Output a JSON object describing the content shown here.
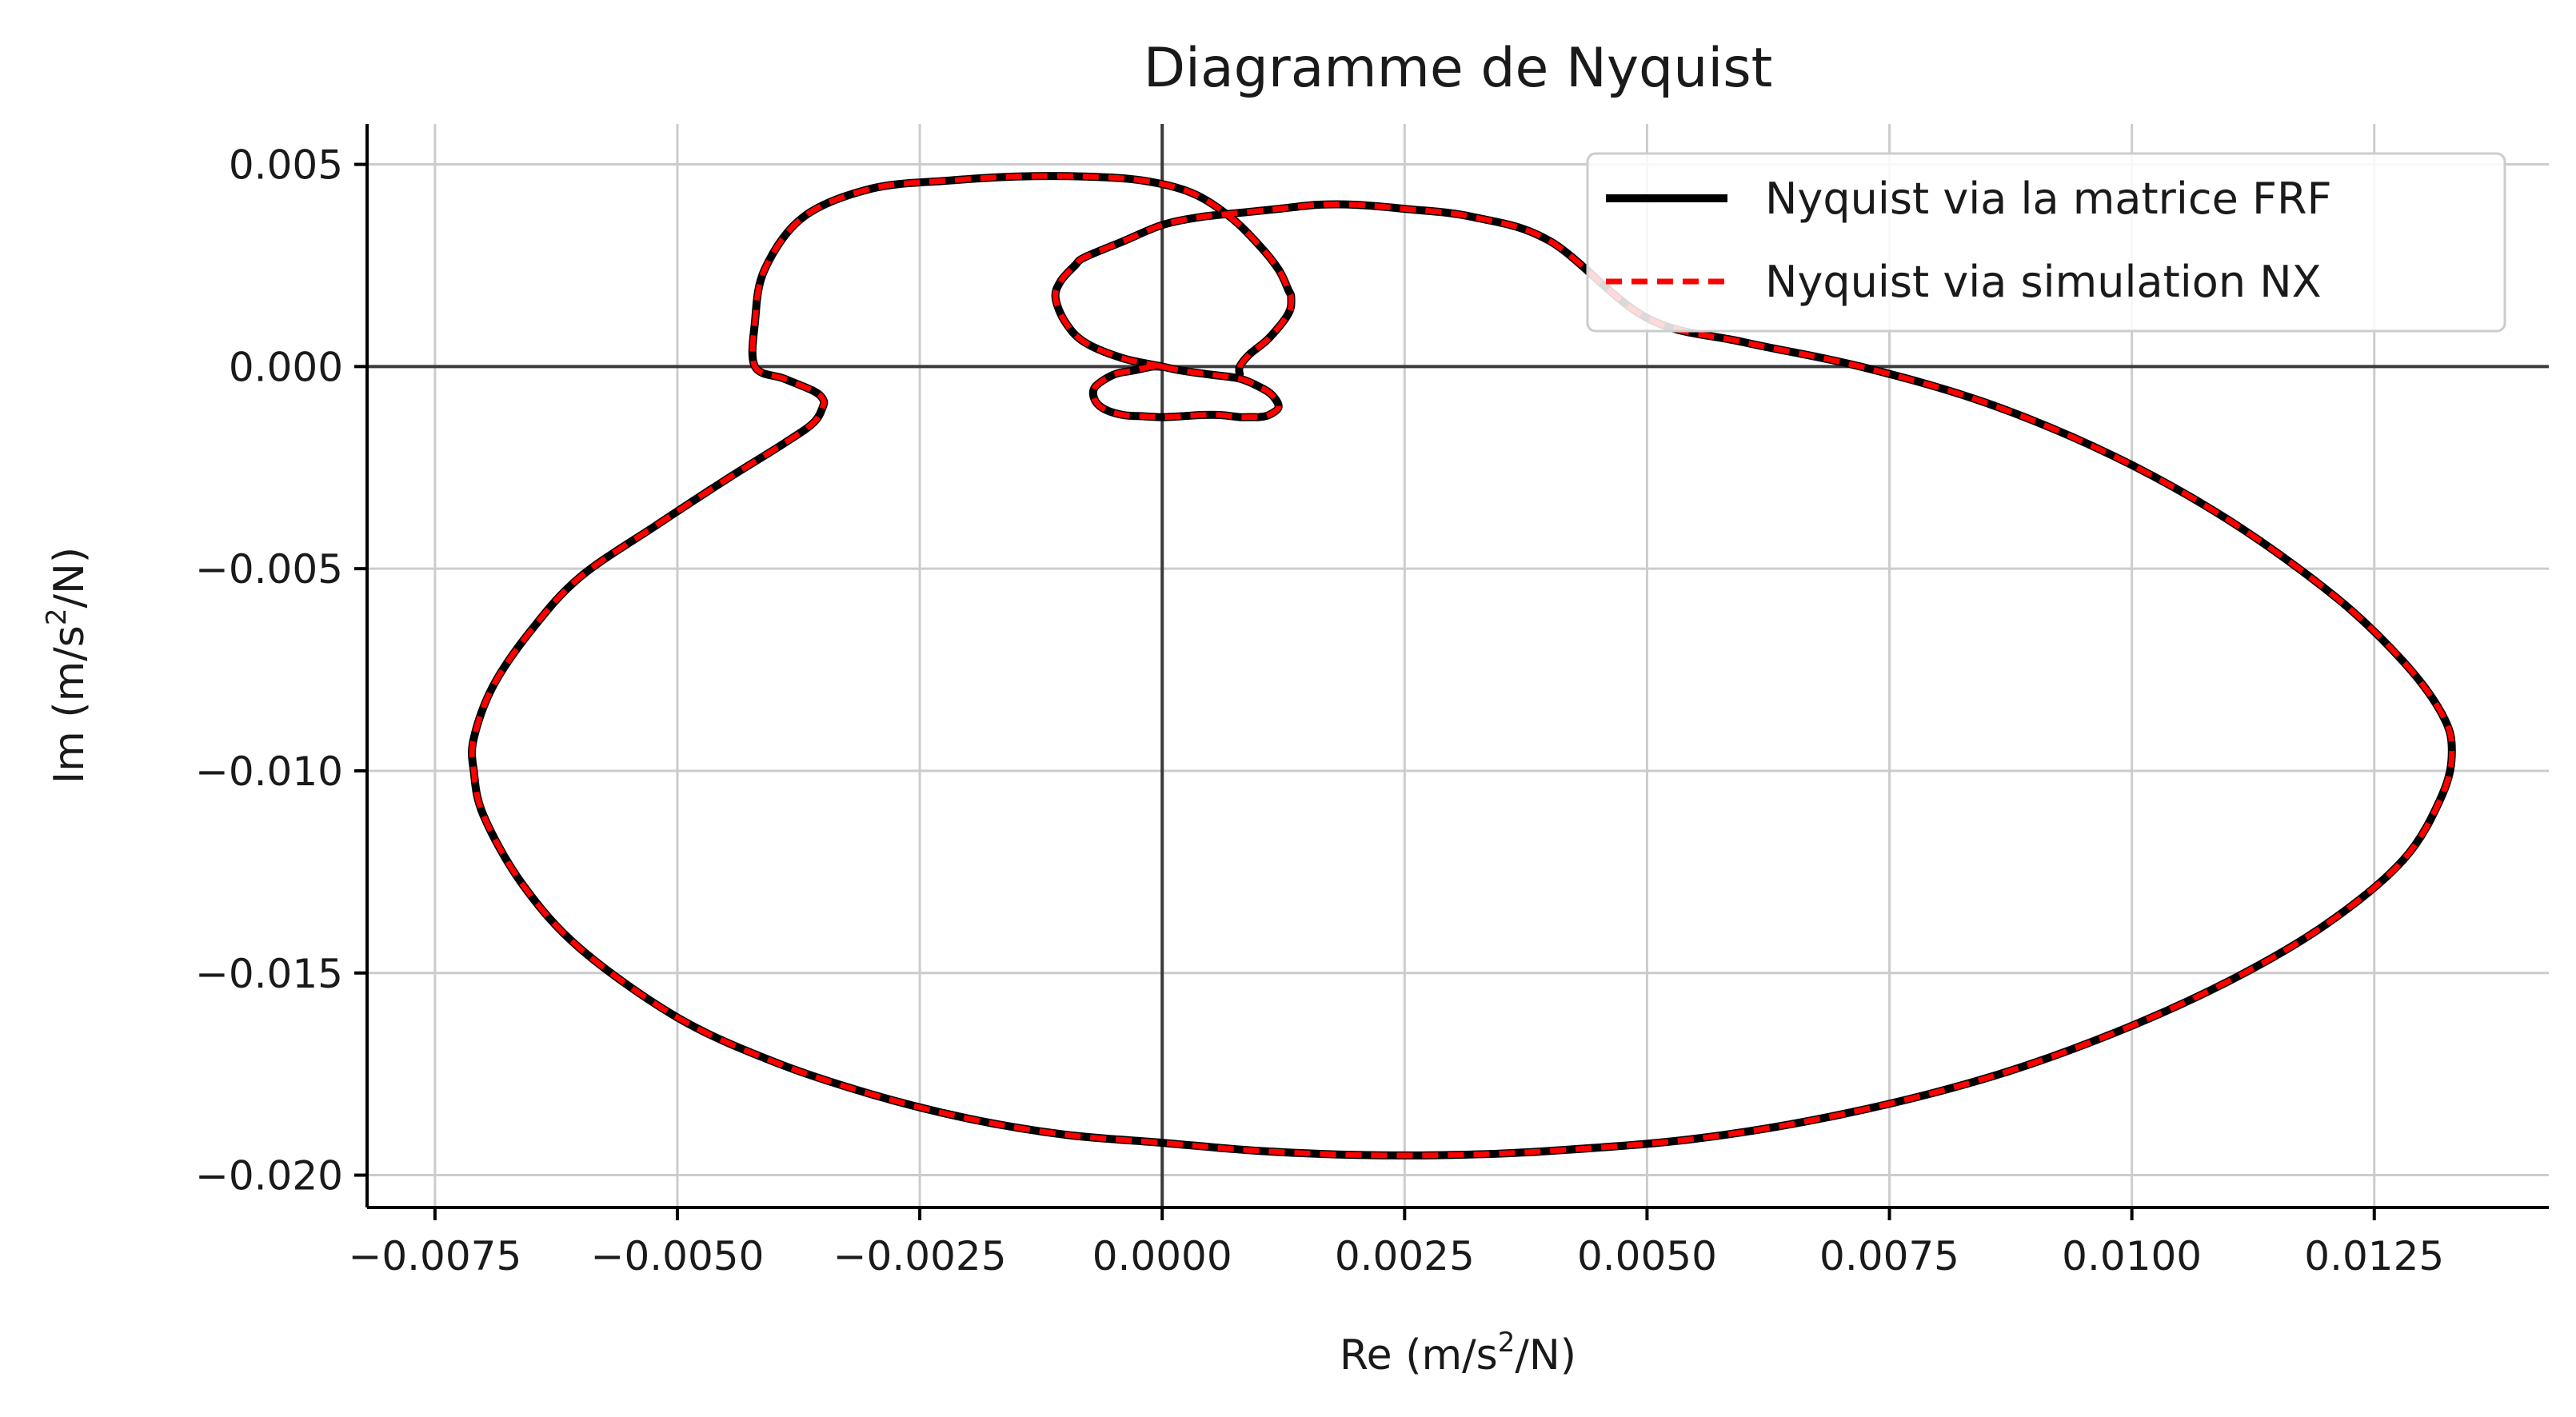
{
  "chart_data": {
    "type": "line",
    "title": "Diagramme de Nyquist",
    "xlabel": "Re (m/s",
    "xlabel_sup": "2",
    "xlabel_end": "/N)",
    "ylabel": "Im (m/s",
    "ylabel_sup": "2",
    "ylabel_end": "/N)",
    "xlim": [
      -0.0082,
      0.0143
    ],
    "ylim": [
      -0.0208,
      0.006
    ],
    "xticks": [
      {
        "value": -0.0075,
        "label": "−0.0075"
      },
      {
        "value": -0.005,
        "label": "−0.0050"
      },
      {
        "value": -0.0025,
        "label": "−0.0025"
      },
      {
        "value": 0.0,
        "label": "0.0000"
      },
      {
        "value": 0.0025,
        "label": "0.0025"
      },
      {
        "value": 0.005,
        "label": "0.0050"
      },
      {
        "value": 0.0075,
        "label": "0.0075"
      },
      {
        "value": 0.01,
        "label": "0.0100"
      },
      {
        "value": 0.0125,
        "label": "0.0125"
      }
    ],
    "yticks": [
      {
        "value": 0.005,
        "label": "0.005"
      },
      {
        "value": 0.0,
        "label": "0.000"
      },
      {
        "value": -0.005,
        "label": "−0.005"
      },
      {
        "value": -0.01,
        "label": "−0.010"
      },
      {
        "value": -0.015,
        "label": "−0.015"
      },
      {
        "value": -0.02,
        "label": "−0.020"
      }
    ],
    "grid": true,
    "reference_lines": {
      "x": 0,
      "y": 0
    },
    "legend_position": "top-right",
    "series": [
      {
        "name": "Nyquist via la matrice FRF",
        "color": "#000000",
        "style": "solid"
      },
      {
        "name": "Nyquist via simulation NX",
        "color": "#ff0000",
        "style": "dashed"
      }
    ],
    "curve": {
      "re": [
        0.0,
        0.0002,
        0.0005,
        0.0008,
        0.001,
        0.00113,
        0.0012,
        0.0011,
        0.001,
        0.00097,
        0.00095,
        0.0009,
        0.0008,
        0.0006,
        0.0004,
        0.0002,
        0.0,
        -0.0002,
        -0.0004,
        -0.0006,
        -0.0007,
        -0.00069,
        -0.0005,
        -0.0003,
        -0.0001,
        0.0,
        -0.0004,
        -0.0008,
        -0.001,
        -0.0011,
        -0.00105,
        -0.0009,
        -0.0008,
        -0.0004,
        0.0,
        0.0004,
        0.0008,
        0.0012,
        0.0016,
        0.002,
        0.0025,
        0.0032,
        0.004,
        0.005,
        0.006,
        0.0072,
        0.0085,
        0.0098,
        0.011,
        0.0121,
        0.0128,
        0.0132,
        0.0133,
        0.0132,
        0.0128,
        0.012,
        0.011,
        0.0098,
        0.0085,
        0.007,
        0.0055,
        0.004,
        0.003,
        0.002,
        0.001,
        0.0,
        -0.001,
        -0.002,
        -0.003,
        -0.004,
        -0.005,
        -0.006,
        -0.0066,
        -0.007,
        -0.0071,
        -0.0071,
        -0.0069,
        -0.0065,
        -0.006,
        -0.0052,
        -0.0045,
        -0.0039,
        -0.0036,
        -0.0035,
        -0.0035,
        -0.0036,
        -0.0039,
        -0.0042,
        -0.0042,
        -0.0041,
        -0.0037,
        -0.003,
        -0.0022,
        -0.0015,
        -0.0008,
        -0.0002,
        0.0003,
        0.0007,
        0.001,
        0.0012,
        0.0013,
        0.00133,
        0.0013,
        0.0011,
        0.0009,
        0.0008,
        0.0008
      ],
      "im": [
        0.0,
        -0.0001,
        -0.0002,
        -0.0003,
        -0.0005,
        -0.0007,
        -0.001,
        -0.0012,
        -0.00125,
        -0.00125,
        -0.00125,
        -0.00125,
        -0.00125,
        -0.0012,
        -0.0012,
        -0.00123,
        -0.00125,
        -0.00123,
        -0.0012,
        -0.00105,
        -0.0008,
        -0.0005,
        -0.0002,
        -0.0001,
        0.0,
        0.0,
        0.0002,
        0.0006,
        0.0011,
        0.0017,
        0.0021,
        0.0025,
        0.0027,
        0.0031,
        0.0035,
        0.0037,
        0.0038,
        0.0039,
        0.004,
        0.004,
        0.0039,
        0.0037,
        0.0031,
        0.0012,
        0.0006,
        0.0,
        -0.0009,
        -0.0022,
        -0.0038,
        -0.0057,
        -0.0073,
        -0.0086,
        -0.0095,
        -0.0106,
        -0.0122,
        -0.0138,
        -0.0152,
        -0.0165,
        -0.0176,
        -0.0185,
        -0.0191,
        -0.0194,
        -0.0195,
        -0.0195,
        -0.0194,
        -0.0192,
        -0.019,
        -0.0186,
        -0.018,
        -0.0172,
        -0.0161,
        -0.0144,
        -0.0128,
        -0.0111,
        -0.01,
        -0.0092,
        -0.0079,
        -0.0065,
        -0.0052,
        -0.0039,
        -0.0028,
        -0.0019,
        -0.0014,
        -0.001,
        -0.0008,
        -0.0006,
        -0.0003,
        0.0,
        0.0011,
        0.0024,
        0.0037,
        0.0044,
        0.0046,
        0.0047,
        0.0047,
        0.0046,
        0.0043,
        0.0037,
        0.003,
        0.0024,
        0.0019,
        0.0017,
        0.0013,
        0.0007,
        0.0003,
        0.0,
        -0.0002
      ]
    }
  }
}
